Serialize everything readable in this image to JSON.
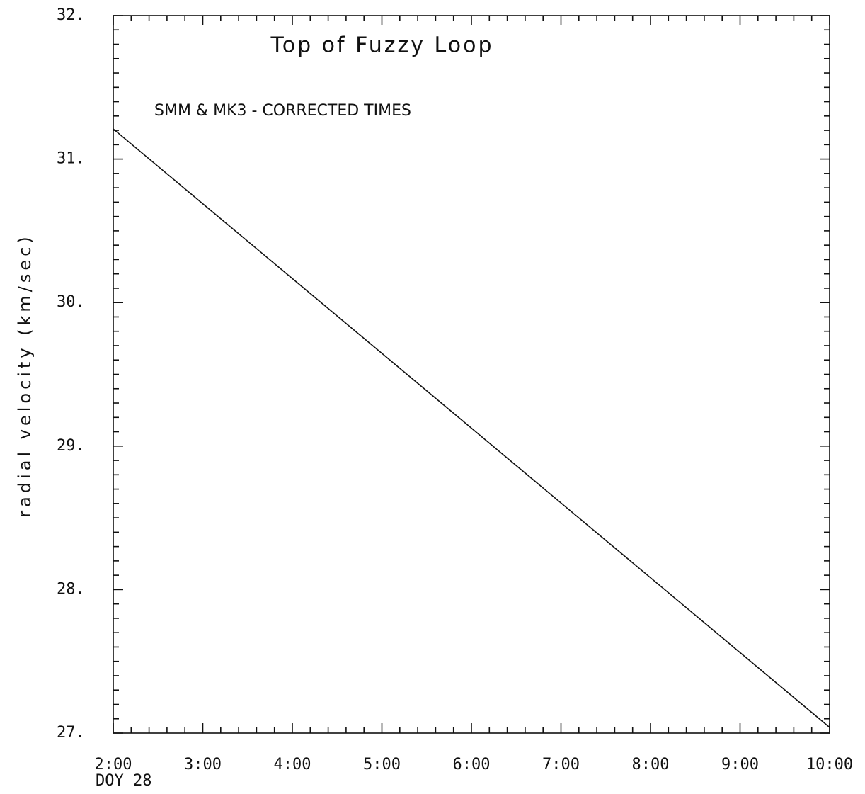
{
  "chart_data": {
    "type": "line",
    "title": "Top of Fuzzy Loop",
    "annotation": "SMM & MK3 - CORRECTED TIMES",
    "y_label": "radial velocity (km/sec)",
    "x_sublabel": "DOY 28",
    "x": [
      2,
      10
    ],
    "series": [
      {
        "name": null,
        "color": "#111111",
        "values": [
          31.21,
          27.04
        ]
      }
    ],
    "xlim": [
      2,
      10
    ],
    "xticks": [
      {
        "value": 2,
        "label": "2:00"
      },
      {
        "value": 3,
        "label": "3:00"
      },
      {
        "value": 4,
        "label": "4:00"
      },
      {
        "value": 5,
        "label": "5:00"
      },
      {
        "value": 6,
        "label": "6:00"
      },
      {
        "value": 7,
        "label": "7:00"
      },
      {
        "value": 8,
        "label": "8:00"
      },
      {
        "value": 9,
        "label": "9:00"
      },
      {
        "value": 10,
        "label": "10:00"
      }
    ],
    "ylim": [
      27,
      32
    ],
    "yticks": [
      {
        "value": 27,
        "label": "27."
      },
      {
        "value": 28,
        "label": "28."
      },
      {
        "value": 29,
        "label": "29."
      },
      {
        "value": 30,
        "label": "30."
      },
      {
        "value": 31,
        "label": "31."
      },
      {
        "value": 32,
        "label": "32."
      }
    ],
    "minor_xticks_per_interval": 5,
    "minor_yticks_per_interval": 10
  }
}
